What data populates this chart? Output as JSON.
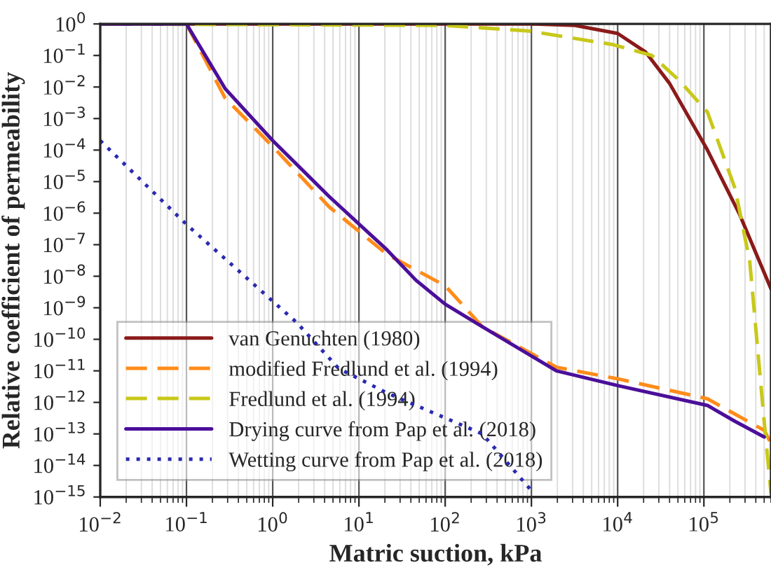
{
  "chart_data": {
    "type": "line",
    "xlabel": "Matric suction, kPa",
    "ylabel": "Relative coefficient of permeability",
    "log": "xy",
    "grid": "x",
    "legend": "lower left",
    "xlim": [
      0.01,
      600000
    ],
    "ylim": [
      1e-15,
      1
    ],
    "xticks": [
      {
        "value": 0.01,
        "label": "10$^{−2}$"
      },
      {
        "value": 0.1,
        "label": "10$^{−1}$"
      },
      {
        "value": 1,
        "label": "10$^{0}$"
      },
      {
        "value": 10,
        "label": "10$^{1}$"
      },
      {
        "value": 100,
        "label": "10$^{2}$"
      },
      {
        "value": 1000,
        "label": "10$^{3}$"
      },
      {
        "value": 10000,
        "label": "10$^{4}$"
      },
      {
        "value": 100000,
        "label": "10$^{5}$"
      }
    ],
    "yticks": [
      {
        "value": 1e-15,
        "label": "10$^{−15}$"
      },
      {
        "value": 1e-14,
        "label": "10$^{−14}$"
      },
      {
        "value": 1e-13,
        "label": "10$^{−13}$"
      },
      {
        "value": 1e-12,
        "label": "10$^{−12}$"
      },
      {
        "value": 1e-11,
        "label": "10$^{−11}$"
      },
      {
        "value": 1e-10,
        "label": "10$^{−10}$"
      },
      {
        "value": 1e-09,
        "label": "10$^{−9}$"
      },
      {
        "value": 1e-08,
        "label": "10$^{−8}$"
      },
      {
        "value": 1e-07,
        "label": "10$^{−7}$"
      },
      {
        "value": 1e-06,
        "label": "10$^{−6}$"
      },
      {
        "value": 1e-05,
        "label": "10$^{−5}$"
      },
      {
        "value": 0.0001,
        "label": "10$^{−4}$"
      },
      {
        "value": 0.001,
        "label": "10$^{−3}$"
      },
      {
        "value": 0.01,
        "label": "10$^{−2}$"
      },
      {
        "value": 0.1,
        "label": "10$^{−1}$"
      },
      {
        "value": 1,
        "label": "10$^{0}$"
      }
    ],
    "series": [
      {
        "name": "van Genuchten (1980)",
        "color": "#8b1a1a",
        "line_style": "solid",
        "x": [
          0.01,
          1000,
          3200,
          10000,
          21000,
          40000,
          110000,
          260000,
          600000
        ],
        "values": [
          1,
          1,
          0.9,
          0.5,
          0.13,
          0.013,
          0.0001,
          9e-07,
          4e-09
        ]
      },
      {
        "name": "modified Fredlund et al. (1994)",
        "color": "#ff8c1a",
        "line_style": "dashed",
        "x": [
          0.1,
          0.1,
          0.28,
          1,
          4.5,
          21,
          100,
          270,
          1950,
          10000,
          110000,
          500000,
          600000
        ],
        "values": [
          1,
          1,
          0.0045,
          0.00013,
          1.6e-06,
          5e-08,
          5e-09,
          2.5e-10,
          1.3e-11,
          5.6e-12,
          1.3e-12,
          1.3e-13,
          5e-14
        ]
      },
      {
        "name": "Fredlund et al. (1994)",
        "color": "#c8c81a",
        "line_style": "dashed",
        "x": [
          0.01,
          100,
          930,
          8900,
          25000,
          52000,
          110000,
          230000,
          340000,
          500000,
          600000
        ],
        "values": [
          1,
          0.9,
          0.6,
          0.22,
          0.1,
          0.016,
          0.0016,
          6e-06,
          3e-08,
          2.5e-13,
          1.3e-15
        ]
      },
      {
        "name": "Drying curve from Pap et al. (2018)",
        "color": "#4b0f9a",
        "line_style": "solid",
        "x": [
          0.01,
          0.1,
          0.28,
          1,
          4.5,
          21,
          46,
          100,
          270,
          1950,
          10000,
          110000,
          230000,
          500000
        ],
        "values": [
          1,
          1,
          0.009,
          0.0002,
          3.4e-06,
          7e-08,
          7.4e-09,
          1.3e-09,
          2.5e-10,
          1e-11,
          3.4e-12,
          8e-13,
          2.5e-13,
          8e-14
        ]
      },
      {
        "name": "Wetting curve from Pap et al. (2018)",
        "color": "#2a2ab0",
        "line_style": "dotted",
        "x": [
          0.01,
          0.1,
          1.9,
          5.8,
          21,
          270,
          1000
        ],
        "values": [
          0.0002,
          4.4e-07,
          3.4e-10,
          1.2e-11,
          2e-12,
          1e-13,
          1.6e-15
        ]
      }
    ]
  }
}
